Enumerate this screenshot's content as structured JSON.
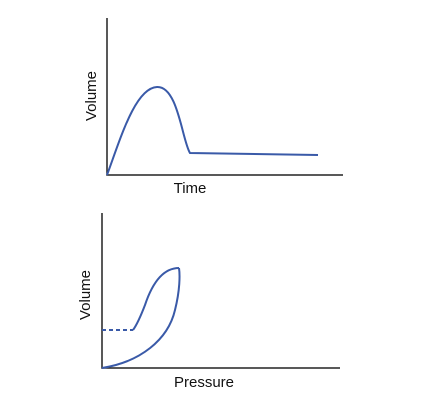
{
  "plots": [
    {
      "y_label": "Volume",
      "x_label": "Time"
    },
    {
      "y_label": "Volume",
      "x_label": "Pressure"
    }
  ]
}
